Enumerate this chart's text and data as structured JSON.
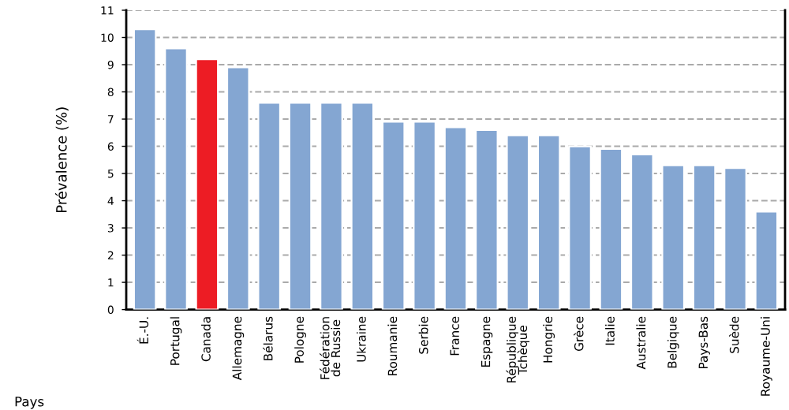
{
  "chart_data": {
    "type": "bar",
    "ylabel": "Prévalence (%)",
    "xlabel": "Pays",
    "categories": [
      "É.-U.",
      "Portugal",
      "Canada",
      "Allemagne",
      "Bélarus",
      "Pologne",
      "Fédération\nde Russie",
      "Ukraine",
      "Roumanie",
      "Serbie",
      "France",
      "Espagne",
      "République\nTchèque",
      "Hongrie",
      "Grèce",
      "Italie",
      "Australie",
      "Belgique",
      "Pays-Bas",
      "Suède",
      "Royaume-Uni"
    ],
    "values": [
      10.3,
      9.6,
      9.2,
      8.9,
      7.6,
      7.6,
      7.6,
      7.6,
      6.9,
      6.9,
      6.7,
      6.6,
      6.4,
      6.4,
      6.0,
      5.9,
      5.7,
      5.3,
      5.3,
      5.2,
      3.6
    ],
    "colors": [
      "#84a6d2",
      "#84a6d2",
      "#ed1c24",
      "#84a6d2",
      "#84a6d2",
      "#84a6d2",
      "#84a6d2",
      "#84a6d2",
      "#84a6d2",
      "#84a6d2",
      "#84a6d2",
      "#84a6d2",
      "#84a6d2",
      "#84a6d2",
      "#84a6d2",
      "#84a6d2",
      "#84a6d2",
      "#84a6d2",
      "#84a6d2",
      "#84a6d2",
      "#84a6d2"
    ],
    "ylim": [
      0,
      11
    ],
    "yticks": [
      0,
      1,
      2,
      3,
      4,
      5,
      6,
      7,
      8,
      9,
      10,
      11
    ],
    "grid": "y"
  }
}
